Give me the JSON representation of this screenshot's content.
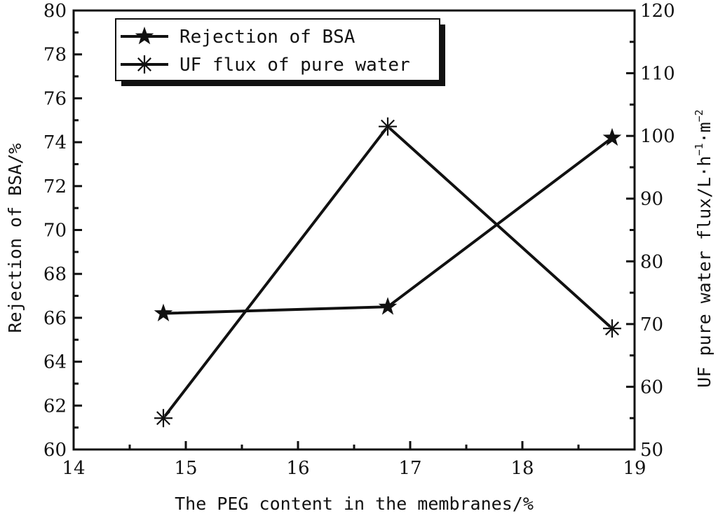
{
  "chart_data": {
    "type": "line",
    "xlabel": "The PEG content in the membranes/%",
    "ylabel_left": "Rejection of BSA/%",
    "ylabel_right": {
      "prefix": "UF pure water flux/L·h",
      "sup1": "−1",
      "mid": "·m",
      "sup2": "−2"
    },
    "xlim": [
      14,
      19
    ],
    "ylim_left": [
      60,
      80
    ],
    "ylim_right": [
      50,
      120
    ],
    "x_ticks": [
      14,
      15,
      16,
      17,
      18,
      19
    ],
    "y_ticks_left": [
      60,
      62,
      64,
      66,
      68,
      70,
      72,
      74,
      76,
      78,
      80
    ],
    "y_ticks_right": [
      50,
      60,
      70,
      80,
      90,
      100,
      110,
      120
    ],
    "grid": false,
    "legend_position": "top-left",
    "series": [
      {
        "name": "Rejection of BSA",
        "axis": "left",
        "marker": "star",
        "x": [
          14.8,
          16.8,
          18.8
        ],
        "y": [
          66.2,
          66.5,
          74.2
        ]
      },
      {
        "name": "UF flux of pure water",
        "axis": "right",
        "marker": "asterisk",
        "x": [
          14.8,
          16.8,
          18.8
        ],
        "y": [
          55.0,
          101.5,
          69.3
        ]
      }
    ]
  }
}
